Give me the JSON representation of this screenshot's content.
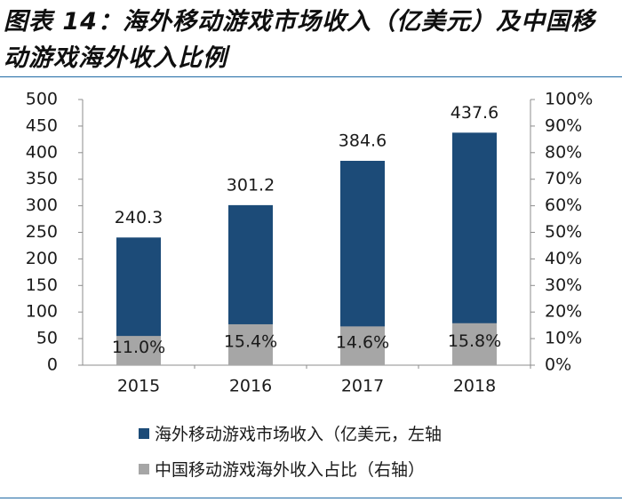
{
  "title": "图表 14：海外移动游戏市场收入（亿美元）及中国移动游戏海外收入比例",
  "colors": {
    "revenue": "#1c4b78",
    "share": "#a6a6a6",
    "rule": "#1f6aa5"
  },
  "chart_data": {
    "type": "bar",
    "categories": [
      "2015",
      "2016",
      "2017",
      "2018"
    ],
    "series": [
      {
        "name": "海外移动游戏市场收入（亿美元，左轴",
        "axis": "left",
        "values": [
          240.3,
          301.2,
          384.6,
          437.6
        ],
        "labels": [
          "240.3",
          "301.2",
          "384.6",
          "437.6"
        ]
      },
      {
        "name": "中国移动游戏海外收入占比（右轴）",
        "axis": "right",
        "values": [
          11.0,
          15.4,
          14.6,
          15.8
        ],
        "labels": [
          "11.0%",
          "15.4%",
          "14.6%",
          "15.8%"
        ]
      }
    ],
    "y_left": {
      "min": 0,
      "max": 500,
      "ticks": [
        "0",
        "50",
        "100",
        "150",
        "200",
        "250",
        "300",
        "350",
        "400",
        "450",
        "500"
      ]
    },
    "y_right": {
      "min": 0,
      "max": 100,
      "ticks": [
        "0%",
        "10%",
        "20%",
        "30%",
        "40%",
        "50%",
        "60%",
        "70%",
        "80%",
        "90%",
        "100%"
      ]
    },
    "grid": false,
    "legend": "bottom"
  }
}
